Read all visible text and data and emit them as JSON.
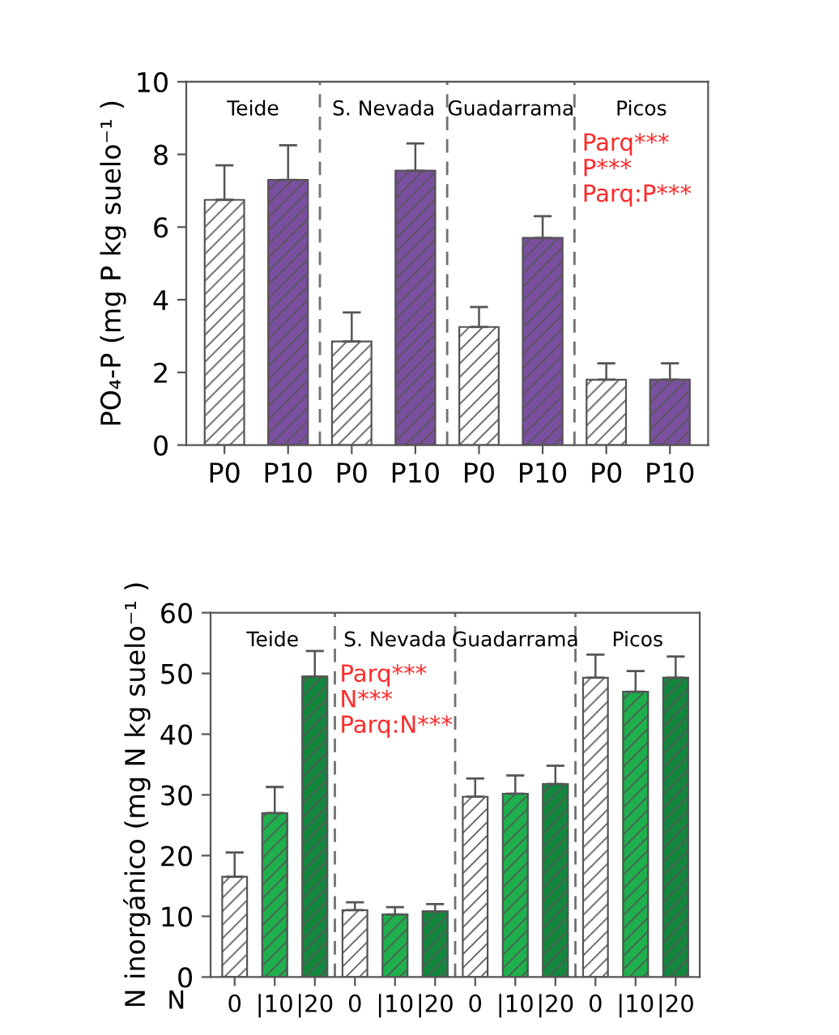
{
  "chart_data": [
    {
      "type": "bar",
      "ylabel": "PO₄-P (mg P kg suelo⁻¹ )",
      "categories": [
        "P0",
        "P10",
        "P0",
        "P10",
        "P0",
        "P10",
        "P0",
        "P10"
      ],
      "values": [
        6.75,
        7.3,
        2.85,
        7.55,
        3.25,
        5.7,
        1.8,
        1.8
      ],
      "errors": [
        [
          6.75,
          7.7
        ],
        [
          7.3,
          8.25
        ],
        [
          2.85,
          3.65
        ],
        [
          7.55,
          8.3
        ],
        [
          3.25,
          3.8
        ],
        [
          5.7,
          6.3
        ],
        [
          1.8,
          2.25
        ],
        [
          1.8,
          2.25
        ]
      ],
      "colors": [
        "#ffffff",
        "#7b4fa0",
        "#ffffff",
        "#7b4fa0",
        "#ffffff",
        "#7b4fa0",
        "#ffffff",
        "#7b4fa0"
      ],
      "ylim": [
        0,
        10
      ],
      "yticks": [
        0,
        2,
        4,
        6,
        8,
        10
      ],
      "grid": false,
      "legend": false,
      "annotations": [
        "Teide",
        "S. Nevada",
        "Guadarrama",
        "Picos",
        "Parq***\nP***\nParq:P***"
      ]
    },
    {
      "type": "bar",
      "xlabel": "N",
      "ylabel": "N inorgánico (mg N kg suelo⁻¹ )",
      "categories": [
        "0",
        "|10",
        "|20",
        "0",
        "|10",
        "|20",
        "0",
        "|10",
        "|20",
        "0",
        "|10",
        "|20"
      ],
      "values": [
        16.5,
        27,
        49.5,
        11,
        10.3,
        10.8,
        29.7,
        30.2,
        31.8,
        49.3,
        47,
        49.3
      ],
      "errors": [
        [
          16.5,
          20.5
        ],
        [
          27,
          31.3
        ],
        [
          49.5,
          53.7
        ],
        [
          11,
          12.3
        ],
        [
          10.3,
          11.5
        ],
        [
          10.8,
          12
        ],
        [
          29.7,
          32.7
        ],
        [
          30.2,
          33.2
        ],
        [
          31.8,
          34.8
        ],
        [
          49.3,
          53.1
        ],
        [
          47,
          50.4
        ],
        [
          49.3,
          52.8
        ]
      ],
      "colors": [
        "#ffffff",
        "#1db04c",
        "#14873e",
        "#ffffff",
        "#1db04c",
        "#14873e",
        "#ffffff",
        "#1db04c",
        "#14873e",
        "#ffffff",
        "#1db04c",
        "#14873e"
      ],
      "ylim": [
        0,
        60
      ],
      "yticks": [
        0,
        10,
        20,
        30,
        40,
        50,
        60
      ],
      "grid": false,
      "legend": false,
      "annotations": [
        "Teide",
        "S. Nevada",
        "Guadarrama",
        "Picos",
        "Parq***\nN***\nParq:N***"
      ]
    }
  ]
}
